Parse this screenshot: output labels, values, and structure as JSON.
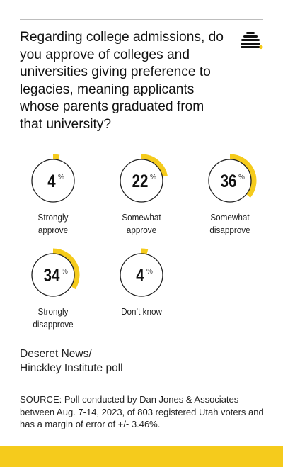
{
  "question": "Regarding college admissions, do you approve of colleges and universities giving preference to legacies, meaning applicants whose parents graduated from that university?",
  "source": {
    "line1": "Deseret News/",
    "line2": "Hinckley Institute poll",
    "note": "SOURCE: Poll conducted by Dan Jones & Associates between Aug. 7-14, 2023, of 803 registered Utah voters and has a margin of error of +/- 3.46%."
  },
  "colors": {
    "accent": "#f5cb1c",
    "ring": "#222222",
    "text": "#1a1a1a"
  },
  "chart_data": {
    "type": "pie",
    "unit": "%",
    "categories": [
      "Strongly approve",
      "Somewhat approve",
      "Somewhat disapprove",
      "Strongly disapprove",
      "Don’t know"
    ],
    "label_lines": [
      [
        "Strongly",
        "approve"
      ],
      [
        "Somewhat",
        "approve"
      ],
      [
        "Somewhat",
        "disapprove"
      ],
      [
        "Strongly",
        "disapprove"
      ],
      [
        "Don’t know"
      ]
    ],
    "values": [
      4,
      22,
      36,
      34,
      4
    ]
  }
}
